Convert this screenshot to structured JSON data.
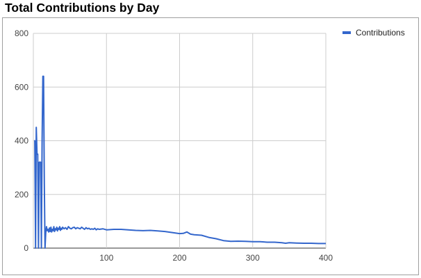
{
  "page_title": "Total Contributions by Day",
  "chart_data": {
    "type": "line",
    "title": "Total Contributions by Day",
    "xlabel": "",
    "ylabel": "",
    "xlim": [
      0,
      400
    ],
    "ylim": [
      0,
      800
    ],
    "x_ticks": [
      100,
      200,
      300,
      400
    ],
    "y_ticks": [
      0,
      200,
      400,
      600,
      800
    ],
    "grid": true,
    "legend_position": "top-right",
    "series": [
      {
        "name": "Contributions",
        "color": "#3366cc",
        "x": [
          1,
          2,
          3,
          4,
          5,
          6,
          7,
          8,
          9,
          10,
          11,
          12,
          13,
          14,
          15,
          16,
          17,
          18,
          19,
          20,
          21,
          22,
          23,
          24,
          25,
          26,
          27,
          28,
          29,
          30,
          31,
          32,
          33,
          34,
          35,
          36,
          37,
          38,
          39,
          40,
          42,
          44,
          46,
          48,
          50,
          52,
          54,
          56,
          58,
          60,
          62,
          64,
          66,
          68,
          70,
          72,
          74,
          76,
          78,
          80,
          82,
          84,
          86,
          88,
          90,
          95,
          100,
          110,
          120,
          130,
          140,
          150,
          160,
          170,
          180,
          190,
          195,
          200,
          205,
          210,
          215,
          220,
          230,
          240,
          250,
          260,
          270,
          280,
          290,
          300,
          310,
          320,
          330,
          340,
          345,
          350,
          360,
          370,
          380,
          390,
          400
        ],
        "values": [
          400,
          400,
          0,
          450,
          350,
          350,
          0,
          320,
          320,
          320,
          0,
          400,
          640,
          640,
          240,
          0,
          60,
          80,
          65,
          70,
          60,
          75,
          62,
          78,
          60,
          70,
          65,
          80,
          62,
          72,
          68,
          78,
          64,
          74,
          70,
          80,
          66,
          74,
          70,
          78,
          72,
          76,
          70,
          80,
          74,
          72,
          76,
          78,
          72,
          76,
          74,
          72,
          78,
          74,
          70,
          76,
          72,
          74,
          70,
          72,
          70,
          74,
          68,
          72,
          70,
          72,
          68,
          70,
          70,
          68,
          66,
          65,
          66,
          64,
          62,
          58,
          56,
          54,
          55,
          60,
          52,
          50,
          48,
          40,
          35,
          28,
          25,
          26,
          25,
          24,
          24,
          22,
          22,
          20,
          18,
          20,
          19,
          18,
          18,
          17,
          17
        ]
      }
    ]
  }
}
